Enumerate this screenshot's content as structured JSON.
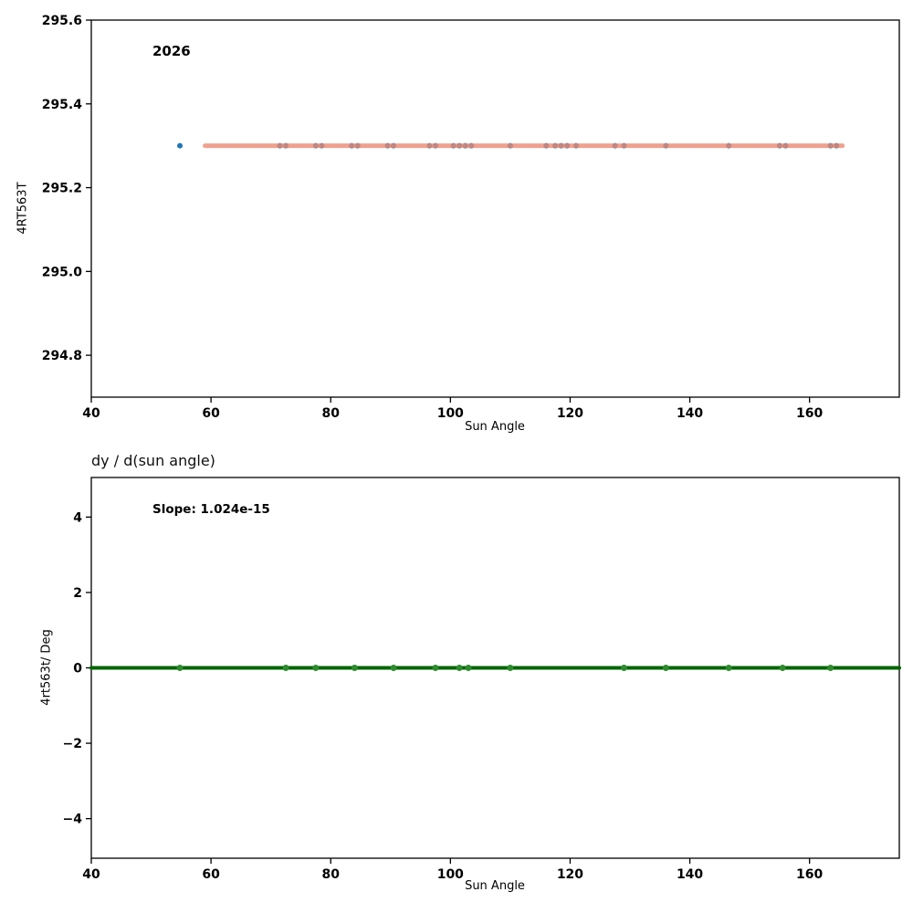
{
  "chart_data": [
    {
      "type": "scatter",
      "title": "",
      "annotation": "2026",
      "xlabel": "Sun Angle",
      "ylabel": "4RT563T",
      "xlim": [
        40,
        175
      ],
      "ylim": [
        294.7,
        295.6
      ],
      "xticks": [
        40,
        60,
        80,
        100,
        120,
        140,
        160
      ],
      "xtick_labels": [
        "40",
        "60",
        "80",
        "100",
        "120",
        "140",
        "160"
      ],
      "yticks": [
        294.8,
        295.0,
        295.2,
        295.4,
        295.6
      ],
      "ytick_labels": [
        "294.8",
        "295.0",
        "295.2",
        "295.4",
        "295.6"
      ],
      "grid": false,
      "legend": null,
      "points": {
        "color": "#1f77b4",
        "radius": 3,
        "y": 295.3,
        "x": [
          54.8,
          71.5,
          72.5,
          77.5,
          78.5,
          83.5,
          84.5,
          89.5,
          90.5,
          96.5,
          97.5,
          100.5,
          101.5,
          102.5,
          103.5,
          110,
          116,
          117.5,
          118.5,
          119.5,
          121,
          127.5,
          129,
          136,
          146.5,
          155,
          156,
          163.5,
          164.5
        ]
      },
      "line": {
        "label": "regression-fit-line",
        "color": "#ec8a74",
        "width": 5,
        "opacity": 0.8,
        "y": 295.3,
        "x_start": 59,
        "x_end": 165.5
      }
    },
    {
      "type": "scatter",
      "title": "dy / d(sun angle)",
      "annotation": "Slope: 1.024e-15",
      "xlabel": "Sun Angle",
      "ylabel": "4rt563t/ Deg",
      "xlim": [
        40,
        175
      ],
      "ylim": [
        -5.05,
        5.05
      ],
      "xticks": [
        40,
        60,
        80,
        100,
        120,
        140,
        160
      ],
      "xtick_labels": [
        "40",
        "60",
        "80",
        "100",
        "120",
        "140",
        "160"
      ],
      "yticks": [
        -4,
        -2,
        0,
        2,
        4
      ],
      "ytick_labels": [
        "−4",
        "−2",
        "0",
        "2",
        "4"
      ],
      "grid": false,
      "legend": null,
      "points": {
        "color": "#2e8b2e",
        "radius": 3.5,
        "y": 0,
        "x": [
          54.8,
          72.5,
          77.5,
          84,
          90.5,
          97.5,
          101.5,
          103,
          110,
          129,
          136,
          146.5,
          155.5,
          163.5
        ]
      },
      "line": {
        "label": "zero-derivative-line",
        "color": "#006600",
        "width": 4,
        "opacity": 1,
        "y": 0,
        "x_start": 40,
        "x_end": 175
      }
    }
  ]
}
